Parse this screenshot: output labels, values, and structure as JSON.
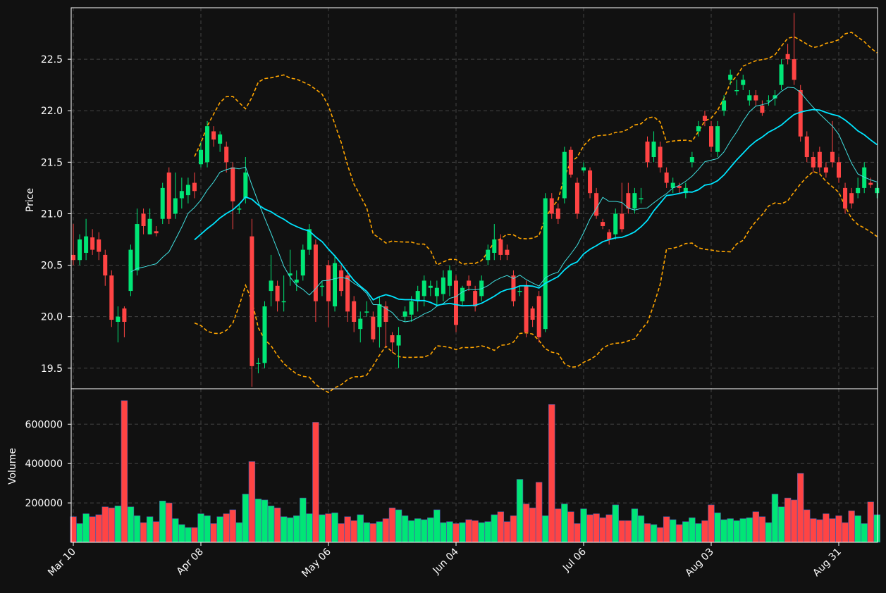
{
  "chart_data": {
    "type": "candlestick",
    "theme": {
      "background": "#111111",
      "up_color": "#00e676",
      "down_color": "#ff4444",
      "ma_short_color": "#40e0e0",
      "ma_long_color": "#00e5ff",
      "band_color": "#ffa500",
      "grid": true
    },
    "price_panel": {
      "ylabel": "Price",
      "ylim": [
        19.3,
        23.0
      ],
      "yticks": [
        19.5,
        20.0,
        20.5,
        21.0,
        21.5,
        22.0,
        22.5
      ],
      "ytick_labels": [
        "19.5",
        "20.0",
        "20.5",
        "21.0",
        "21.5",
        "22.0",
        "22.5"
      ]
    },
    "volume_panel": {
      "ylabel": "Volume",
      "ylim": [
        0,
        780000
      ],
      "yticks": [
        200000,
        400000,
        600000
      ],
      "ytick_labels": [
        "200000",
        "400000",
        "600000"
      ]
    },
    "x_ticks": [
      {
        "label": "Mar 10",
        "index": 0
      },
      {
        "label": "Apr 08",
        "index": 20
      },
      {
        "label": "May 06",
        "index": 40
      },
      {
        "label": "Jun 04",
        "index": 60
      },
      {
        "label": "Jul 06",
        "index": 80
      },
      {
        "label": "Aug 03",
        "index": 100
      },
      {
        "label": "Aug 31",
        "index": 120
      }
    ],
    "candles": [
      [
        20.6,
        20.55,
        20.9,
        20.5,
        130000
      ],
      [
        20.55,
        20.75,
        20.8,
        20.5,
        95000
      ],
      [
        20.62,
        20.78,
        20.95,
        20.55,
        145000
      ],
      [
        20.77,
        20.65,
        20.85,
        20.6,
        130000
      ],
      [
        20.75,
        20.63,
        20.82,
        20.55,
        140000
      ],
      [
        20.6,
        20.4,
        20.65,
        20.3,
        180000
      ],
      [
        20.4,
        19.97,
        20.45,
        19.9,
        175000
      ],
      [
        19.95,
        20.0,
        20.1,
        19.75,
        185000
      ],
      [
        20.08,
        19.95,
        20.1,
        19.8,
        720000
      ],
      [
        20.25,
        20.65,
        20.7,
        20.2,
        180000
      ],
      [
        20.45,
        20.9,
        21.05,
        20.4,
        135000
      ],
      [
        21.0,
        20.88,
        21.05,
        20.8,
        100000
      ],
      [
        20.8,
        20.95,
        21.05,
        20.8,
        130000
      ],
      [
        20.83,
        20.81,
        20.88,
        20.78,
        105000
      ],
      [
        20.95,
        21.25,
        21.3,
        20.9,
        210000
      ],
      [
        21.4,
        20.95,
        21.45,
        20.9,
        200000
      ],
      [
        21.0,
        21.15,
        21.4,
        20.95,
        120000
      ],
      [
        21.15,
        21.22,
        21.35,
        21.05,
        90000
      ],
      [
        21.18,
        21.28,
        21.35,
        21.1,
        75000
      ],
      [
        21.3,
        21.22,
        21.4,
        21.15,
        75000
      ],
      [
        21.48,
        21.62,
        21.7,
        21.45,
        145000
      ],
      [
        21.5,
        21.85,
        21.9,
        21.45,
        135000
      ],
      [
        21.8,
        21.72,
        21.85,
        21.65,
        95000
      ],
      [
        21.68,
        21.77,
        21.8,
        21.6,
        130000
      ],
      [
        21.65,
        21.5,
        21.7,
        21.4,
        145000
      ],
      [
        21.45,
        21.12,
        21.5,
        20.85,
        165000
      ],
      [
        21.05,
        21.05,
        21.1,
        21.0,
        100000
      ],
      [
        21.15,
        21.4,
        21.55,
        21.1,
        245000
      ],
      [
        20.78,
        19.52,
        20.95,
        19.32,
        410000
      ],
      [
        19.55,
        19.55,
        19.6,
        19.45,
        220000
      ],
      [
        19.55,
        20.1,
        20.15,
        19.5,
        215000
      ],
      [
        20.25,
        20.35,
        20.6,
        20.1,
        185000
      ],
      [
        20.3,
        20.15,
        20.35,
        20.05,
        175000
      ],
      [
        20.15,
        20.15,
        20.4,
        20.05,
        130000
      ],
      [
        20.4,
        20.42,
        20.65,
        20.3,
        125000
      ],
      [
        20.33,
        20.36,
        20.45,
        20.25,
        135000
      ],
      [
        20.4,
        20.65,
        20.7,
        20.35,
        225000
      ],
      [
        20.65,
        20.85,
        20.9,
        20.6,
        145000
      ],
      [
        20.7,
        20.15,
        20.75,
        19.95,
        610000
      ],
      [
        20.3,
        20.3,
        20.35,
        20.2,
        140000
      ],
      [
        20.5,
        20.15,
        20.55,
        19.9,
        145000
      ],
      [
        20.1,
        20.52,
        20.6,
        20.05,
        150000
      ],
      [
        20.45,
        20.25,
        20.5,
        20.2,
        95000
      ],
      [
        20.4,
        20.05,
        20.45,
        19.95,
        130000
      ],
      [
        20.15,
        19.95,
        20.2,
        19.85,
        110000
      ],
      [
        19.88,
        19.98,
        20.05,
        19.75,
        140000
      ],
      [
        20.05,
        20.05,
        20.15,
        20.0,
        100000
      ],
      [
        20.0,
        19.78,
        20.05,
        19.75,
        95000
      ],
      [
        19.9,
        20.12,
        20.2,
        19.7,
        105000
      ],
      [
        20.1,
        19.95,
        20.15,
        19.7,
        120000
      ],
      [
        19.82,
        19.75,
        19.85,
        19.65,
        175000
      ],
      [
        19.72,
        19.82,
        19.9,
        19.5,
        165000
      ],
      [
        20.0,
        20.05,
        20.1,
        19.95,
        135000
      ],
      [
        20.02,
        20.15,
        20.2,
        19.95,
        110000
      ],
      [
        20.15,
        20.25,
        20.3,
        20.05,
        120000
      ],
      [
        20.2,
        20.35,
        20.4,
        20.1,
        115000
      ],
      [
        20.28,
        20.3,
        20.35,
        20.2,
        125000
      ],
      [
        20.2,
        20.28,
        20.35,
        20.1,
        165000
      ],
      [
        20.22,
        20.38,
        20.45,
        20.15,
        100000
      ],
      [
        20.3,
        20.45,
        20.5,
        20.2,
        105000
      ],
      [
        20.35,
        19.92,
        20.4,
        19.85,
        95000
      ],
      [
        20.15,
        20.28,
        20.3,
        20.1,
        100000
      ],
      [
        20.35,
        20.3,
        20.4,
        20.25,
        115000
      ],
      [
        20.25,
        20.1,
        20.3,
        20.05,
        110000
      ],
      [
        20.2,
        20.35,
        20.4,
        20.15,
        100000
      ],
      [
        20.55,
        20.65,
        20.7,
        20.5,
        105000
      ],
      [
        20.62,
        20.75,
        20.9,
        20.55,
        140000
      ],
      [
        20.75,
        20.6,
        20.8,
        20.55,
        155000
      ],
      [
        20.65,
        20.6,
        20.7,
        20.55,
        105000
      ],
      [
        20.4,
        20.15,
        20.45,
        20.1,
        135000
      ],
      [
        20.25,
        20.25,
        20.3,
        20.2,
        320000
      ],
      [
        20.3,
        19.85,
        20.35,
        19.8,
        195000
      ],
      [
        20.08,
        19.97,
        20.1,
        19.9,
        175000
      ],
      [
        20.2,
        19.8,
        20.25,
        19.75,
        305000
      ],
      [
        19.88,
        21.15,
        21.2,
        19.85,
        135000
      ],
      [
        21.15,
        21.0,
        21.2,
        20.95,
        700000
      ],
      [
        21.05,
        20.95,
        21.1,
        20.9,
        170000
      ],
      [
        21.15,
        21.6,
        21.65,
        21.1,
        195000
      ],
      [
        21.62,
        21.38,
        21.65,
        21.35,
        155000
      ],
      [
        21.3,
        21.0,
        21.35,
        20.95,
        95000
      ],
      [
        21.42,
        21.45,
        21.5,
        21.4,
        170000
      ],
      [
        21.42,
        21.2,
        21.45,
        21.15,
        140000
      ],
      [
        21.2,
        20.98,
        21.25,
        20.95,
        145000
      ],
      [
        20.92,
        20.88,
        20.95,
        20.85,
        125000
      ],
      [
        20.82,
        20.75,
        20.85,
        20.7,
        140000
      ],
      [
        20.8,
        21.0,
        21.05,
        20.75,
        190000
      ],
      [
        21.0,
        20.85,
        21.3,
        20.82,
        110000
      ],
      [
        21.2,
        21.05,
        21.3,
        21.0,
        110000
      ],
      [
        21.05,
        21.2,
        21.25,
        21.0,
        170000
      ],
      [
        21.15,
        21.15,
        21.25,
        21.1,
        135000
      ],
      [
        21.7,
        21.5,
        21.75,
        21.45,
        95000
      ],
      [
        21.55,
        21.7,
        21.8,
        21.5,
        90000
      ],
      [
        21.65,
        21.45,
        21.7,
        21.4,
        75000
      ],
      [
        21.4,
        21.3,
        21.45,
        21.25,
        130000
      ],
      [
        21.25,
        21.3,
        21.35,
        21.2,
        115000
      ],
      [
        21.27,
        21.25,
        21.3,
        21.2,
        90000
      ],
      [
        21.2,
        21.25,
        21.3,
        21.15,
        105000
      ],
      [
        21.5,
        21.55,
        21.6,
        21.45,
        125000
      ],
      [
        21.8,
        21.85,
        21.9,
        21.75,
        95000
      ],
      [
        21.95,
        21.9,
        22.0,
        21.85,
        110000
      ],
      [
        21.85,
        21.65,
        21.9,
        21.6,
        190000
      ],
      [
        21.6,
        21.85,
        21.9,
        21.55,
        150000
      ],
      [
        22.0,
        22.1,
        22.15,
        21.95,
        115000
      ],
      [
        22.3,
        22.35,
        22.4,
        22.25,
        120000
      ],
      [
        22.2,
        22.2,
        22.3,
        22.15,
        110000
      ],
      [
        22.25,
        22.3,
        22.35,
        22.2,
        120000
      ],
      [
        22.1,
        22.15,
        22.2,
        22.05,
        125000
      ],
      [
        22.15,
        22.1,
        22.2,
        22.05,
        155000
      ],
      [
        22.05,
        21.98,
        22.1,
        21.95,
        130000
      ],
      [
        22.1,
        22.1,
        22.15,
        22.05,
        100000
      ],
      [
        22.12,
        22.15,
        22.2,
        22.05,
        245000
      ],
      [
        22.25,
        22.45,
        22.5,
        22.2,
        180000
      ],
      [
        22.55,
        22.5,
        22.65,
        22.45,
        225000
      ],
      [
        22.5,
        22.3,
        22.95,
        22.25,
        215000
      ],
      [
        22.2,
        21.75,
        22.25,
        21.7,
        350000
      ],
      [
        21.75,
        21.55,
        21.8,
        21.5,
        165000
      ],
      [
        21.55,
        21.45,
        21.6,
        21.4,
        120000
      ],
      [
        21.6,
        21.45,
        21.65,
        21.4,
        115000
      ],
      [
        21.45,
        21.4,
        21.5,
        21.35,
        145000
      ],
      [
        21.6,
        21.5,
        21.9,
        21.45,
        120000
      ],
      [
        21.5,
        21.35,
        21.55,
        21.3,
        135000
      ],
      [
        21.25,
        21.05,
        21.3,
        21.0,
        100000
      ],
      [
        21.2,
        21.1,
        21.25,
        21.05,
        160000
      ],
      [
        21.2,
        21.25,
        21.35,
        21.15,
        135000
      ],
      [
        21.25,
        21.45,
        21.5,
        21.2,
        95000
      ],
      [
        21.3,
        21.28,
        21.35,
        21.25,
        205000
      ],
      [
        21.2,
        21.25,
        21.3,
        21.15,
        140000
      ]
    ]
  }
}
